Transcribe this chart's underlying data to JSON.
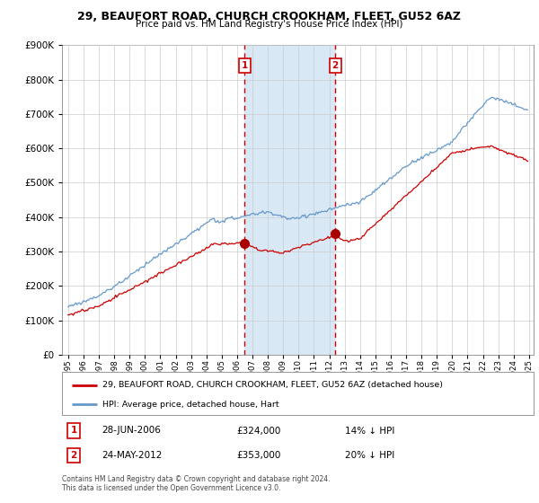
{
  "title": "29, BEAUFORT ROAD, CHURCH CROOKHAM, FLEET, GU52 6AZ",
  "subtitle": "Price paid vs. HM Land Registry's House Price Index (HPI)",
  "red_label": "29, BEAUFORT ROAD, CHURCH CROOKHAM, FLEET, GU52 6AZ (detached house)",
  "blue_label": "HPI: Average price, detached house, Hart",
  "transaction1_date": "28-JUN-2006",
  "transaction1_price": "£324,000",
  "transaction1_pct": "14% ↓ HPI",
  "transaction2_date": "24-MAY-2012",
  "transaction2_price": "£353,000",
  "transaction2_pct": "20% ↓ HPI",
  "footnote1": "Contains HM Land Registry data © Crown copyright and database right 2024.",
  "footnote2": "This data is licensed under the Open Government Licence v3.0.",
  "vline1_x": 2006.49,
  "vline2_x": 2012.38,
  "vline1_y_red": 324000,
  "vline2_y_red": 353000,
  "ylim": [
    0,
    900000
  ],
  "xlim_start": 1994.6,
  "xlim_end": 2025.3,
  "plot_bg_color": "#ffffff",
  "span_color": "#d8e8f5",
  "grid_color": "#cccccc",
  "red_color": "#cc0000",
  "blue_color": "#6699cc",
  "marker_color": "#aa0000"
}
